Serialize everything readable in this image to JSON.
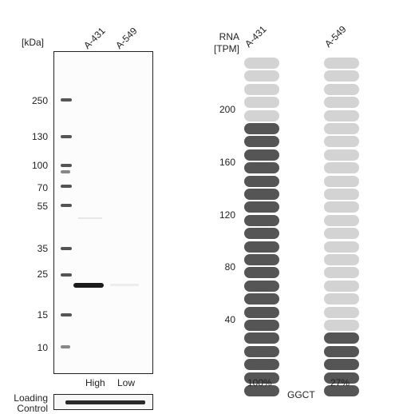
{
  "western_blot": {
    "kda_label": "[kDa]",
    "lanes": [
      "A-431",
      "A-549"
    ],
    "markers": [
      "250",
      "130",
      "100",
      "70",
      "55",
      "35",
      "25",
      "15",
      "10"
    ],
    "lane_expression": [
      "High",
      "Low"
    ],
    "loading_control_label": "Loading\nControl"
  },
  "rna_panel": {
    "header_line1": "RNA",
    "header_line2": "[TPM]",
    "cell_lines": [
      "A-431",
      "A-549"
    ],
    "y_ticks": [
      "200",
      "160",
      "120",
      "80",
      "40"
    ],
    "percent_labels": [
      "100%",
      "27%"
    ],
    "gene": "GGCT",
    "columns": [
      {
        "name": "A-431",
        "filled_fraction": 0.8077,
        "color_filled": "#555555",
        "color_empty": "#d3d3d3",
        "total_pills": 26
      },
      {
        "name": "A-549",
        "filled_fraction": 0.1923,
        "color_filled": "#555555",
        "color_empty": "#d3d3d3",
        "total_pills": 26
      }
    ]
  }
}
